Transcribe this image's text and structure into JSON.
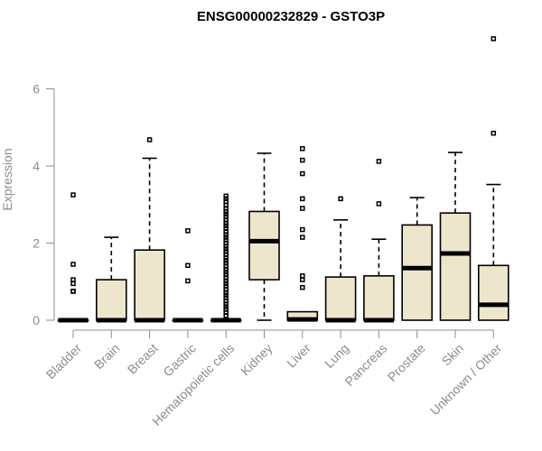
{
  "chart_data": {
    "type": "boxplot",
    "title": "ENSG00000232829 - GSTO3P",
    "ylabel": "Expression",
    "xlabel": "",
    "ylim": [
      0,
      7.3
    ],
    "yticks": [
      0,
      2,
      4,
      6
    ],
    "colors": {
      "box_fill": "#ede6cc",
      "box_stroke": "#000000",
      "axis": "#8c8c8c"
    },
    "categories": [
      "Bladder",
      "Brain",
      "Breast",
      "Gastric",
      "Hematopoietic cells",
      "Kidney",
      "Liver",
      "Lung",
      "Pancreas",
      "Prostate",
      "Skin",
      "Unknown / Other"
    ],
    "boxes": [
      {
        "name": "Bladder",
        "q1": 0,
        "median": 0,
        "q3": 0,
        "whisker_low": 0,
        "whisker_high": 0,
        "outliers": [
          3.25,
          1.45,
          1.05,
          0.95,
          0.75,
          0.75
        ]
      },
      {
        "name": "Brain",
        "q1": 0,
        "median": 0,
        "q3": 1.05,
        "whisker_low": 0,
        "whisker_high": 2.15,
        "outliers": []
      },
      {
        "name": "Breast",
        "q1": 0,
        "median": 0,
        "q3": 1.82,
        "whisker_low": 0,
        "whisker_high": 4.2,
        "outliers": [
          4.68
        ]
      },
      {
        "name": "Gastric",
        "q1": 0,
        "median": 0,
        "q3": 0,
        "whisker_low": 0,
        "whisker_high": 0,
        "outliers": [
          2.32,
          1.42,
          1.02
        ]
      },
      {
        "name": "Hematopoietic cells",
        "q1": 0,
        "median": 0,
        "q3": 0,
        "whisker_low": 0,
        "whisker_high": 0,
        "outliers": [
          3.22,
          3.15,
          3.08,
          2.98,
          2.9,
          2.82,
          2.75,
          2.68,
          2.6,
          2.52,
          2.45,
          2.38,
          2.3,
          2.22,
          2.15,
          2.08,
          2.0,
          1.92,
          1.85,
          1.78,
          1.7,
          1.62,
          1.55,
          1.48,
          1.4,
          1.32,
          1.25,
          1.18,
          1.1,
          1.02,
          0.95,
          0.88,
          0.8,
          0.72,
          0.65,
          0.58,
          0.5,
          0.42,
          0.35,
          0.28,
          0.2,
          0.12
        ]
      },
      {
        "name": "Kidney",
        "q1": 1.05,
        "median": 2.05,
        "q3": 2.82,
        "whisker_low": 0,
        "whisker_high": 4.33,
        "outliers": []
      },
      {
        "name": "Liver",
        "q1": 0,
        "median": 0.02,
        "q3": 0.22,
        "whisker_low": 0,
        "whisker_high": 0.22,
        "outliers": [
          4.45,
          4.15,
          3.8,
          3.15,
          2.9,
          2.35,
          2.15,
          1.15,
          1.05,
          0.85
        ]
      },
      {
        "name": "Lung",
        "q1": 0,
        "median": 0,
        "q3": 1.12,
        "whisker_low": 0,
        "whisker_high": 2.6,
        "outliers": [
          3.15
        ]
      },
      {
        "name": "Pancreas",
        "q1": 0,
        "median": 0,
        "q3": 1.15,
        "whisker_low": 0,
        "whisker_high": 2.1,
        "outliers": [
          4.12,
          3.02
        ]
      },
      {
        "name": "Prostate",
        "q1": 0,
        "median": 1.35,
        "q3": 2.47,
        "whisker_low": 0,
        "whisker_high": 3.18,
        "outliers": []
      },
      {
        "name": "Skin",
        "q1": 0,
        "median": 1.73,
        "q3": 2.78,
        "whisker_low": 0,
        "whisker_high": 4.35,
        "outliers": []
      },
      {
        "name": "Unknown / Other",
        "q1": 0,
        "median": 0.4,
        "q3": 1.42,
        "whisker_low": 0,
        "whisker_high": 3.52,
        "outliers": [
          7.3,
          4.85
        ]
      }
    ]
  }
}
